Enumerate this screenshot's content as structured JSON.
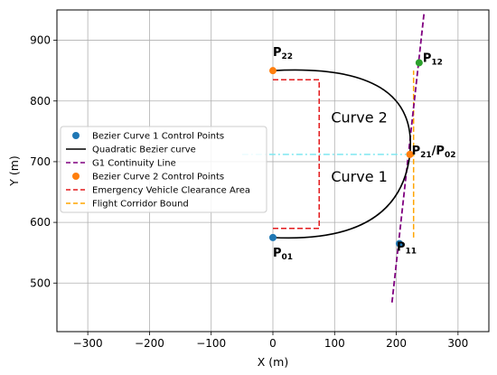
{
  "chart_data": {
    "type": "line",
    "xlabel": "X (m)",
    "ylabel": "Y (m)",
    "xlim": [
      -350,
      350
    ],
    "ylim": [
      420,
      950
    ],
    "xticks": [
      -300,
      -200,
      -100,
      0,
      100,
      200,
      300
    ],
    "yticks": [
      500,
      600,
      700,
      800,
      900
    ],
    "grid": true,
    "legend_position": "center-left",
    "legend": [
      {
        "label": "Bezier Curve 1 Control Points",
        "kind": "marker",
        "color": "#1f77b4"
      },
      {
        "label": "Quadratic Bezier curve",
        "kind": "line",
        "color": "#000000",
        "dash": "solid"
      },
      {
        "label": "G1 Continuity Line",
        "kind": "line",
        "color": "#800080",
        "dash": "dashed"
      },
      {
        "label": "Bezier Curve 2 Control Points",
        "kind": "marker",
        "color": "#ff7f0e"
      },
      {
        "label": "Emergency Vehicle Clearance Area",
        "kind": "line",
        "color": "#e31a1c",
        "dash": "dashed"
      },
      {
        "label": "Flight Corridor Bound",
        "kind": "line",
        "color": "#ffa500",
        "dash": "dashed"
      }
    ],
    "bezier_curve_1": {
      "control_points": [
        {
          "name": "P01",
          "x": 0,
          "y": 575
        },
        {
          "name": "P11",
          "x": 205,
          "y": 565
        },
        {
          "name": "P21/P02",
          "x": 222,
          "y": 712
        }
      ],
      "marker_color": "#1f77b4"
    },
    "bezier_curve_2": {
      "control_points": [
        {
          "name": "P21/P02",
          "x": 222,
          "y": 712
        },
        {
          "name": "P12",
          "x": 237,
          "y": 863
        },
        {
          "name": "P22",
          "x": 0,
          "y": 850
        }
      ],
      "marker_color": "#ff7f0e"
    },
    "g1_continuity_line": {
      "points": [
        [
          193,
          468
        ],
        [
          245,
          945
        ]
      ],
      "color": "#800080"
    },
    "emergency_clearance_area": {
      "points": [
        [
          0,
          590
        ],
        [
          75,
          590
        ],
        [
          75,
          835
        ],
        [
          0,
          835
        ]
      ],
      "color": "#e31a1c"
    },
    "flight_corridor_bound": {
      "x": 228,
      "y_range": [
        575,
        850
      ],
      "color": "#ffa500"
    },
    "cyan_dashdot_line": {
      "y": 712,
      "x_range": [
        -50,
        222
      ],
      "color": "#7fe8f0"
    },
    "point_labels": [
      {
        "main": "P",
        "sub": "22",
        "x": 0,
        "y": 850
      },
      {
        "main": "P",
        "sub": "12",
        "x": 237,
        "y": 863
      },
      {
        "main": "P",
        "sub": "21",
        "suffix": "/P",
        "sub2": "02",
        "x": 222,
        "y": 712
      },
      {
        "main": "P",
        "sub": "11",
        "x": 205,
        "y": 565
      },
      {
        "main": "P",
        "sub": "01",
        "x": 0,
        "y": 575
      }
    ],
    "region_labels": [
      {
        "text": "Curve 2",
        "x": 140,
        "y": 765
      },
      {
        "text": "Curve 1",
        "x": 140,
        "y": 667
      }
    ]
  }
}
